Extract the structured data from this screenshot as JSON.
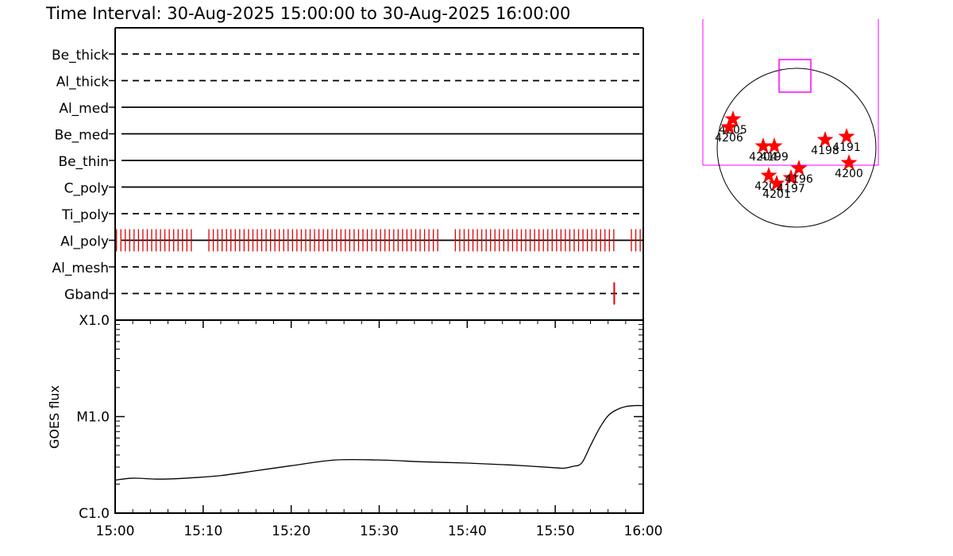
{
  "title": "Time Interval: 30-Aug-2025 15:00:00 to 30-Aug-2025 16:00:00",
  "colors": {
    "axes": "#000000",
    "events": "#e00000",
    "frame": "#ff00ff",
    "stars": "#ff0000"
  },
  "chart_data": [
    {
      "type": "timeline",
      "x_range": [
        "15:00",
        "16:00"
      ],
      "rows": [
        {
          "label": "Be_thick",
          "style": "dashed",
          "events": []
        },
        {
          "label": "Al_thick",
          "style": "dashed",
          "events": []
        },
        {
          "label": "Al_med",
          "style": "solid",
          "events": []
        },
        {
          "label": "Be_med",
          "style": "solid",
          "events": []
        },
        {
          "label": "Be_thin",
          "style": "solid",
          "events": []
        },
        {
          "label": "C_poly",
          "style": "solid",
          "events": []
        },
        {
          "label": "Ti_poly",
          "style": "dashed",
          "events": []
        },
        {
          "label": "Al_poly",
          "style": "solid",
          "events": "every ~30 s, with gaps near 15:09-15:10, 15:37-15:38, 15:57-15:58"
        },
        {
          "label": "Al_mesh",
          "style": "dashed",
          "events": []
        },
        {
          "label": "Gband",
          "style": "dashed",
          "events": [
            "15:56.7"
          ]
        }
      ]
    },
    {
      "type": "line",
      "ylabel": "GOES flux",
      "y_scale": "log",
      "y_ticks": [
        "C1.0",
        "M1.0",
        "X1.0"
      ],
      "ylim": [
        1e-06,
        0.0001
      ],
      "x_ticks": [
        "15:00",
        "15:10",
        "15:20",
        "15:30",
        "15:40",
        "15:50",
        "16:00"
      ],
      "series": [
        {
          "x": [
            "15:00",
            "15:02",
            "15:05",
            "15:08",
            "15:12",
            "15:16",
            "15:20",
            "15:25",
            "15:30",
            "15:35",
            "15:40",
            "15:45",
            "15:50",
            "15:51",
            "15:52",
            "15:53",
            "15:54",
            "15:55",
            "15:56",
            "15:57",
            "15:58",
            "15:59",
            "16:00"
          ],
          "y": [
            2.2e-06,
            2.3e-06,
            2.25e-06,
            2.3e-06,
            2.45e-06,
            2.75e-06,
            3.1e-06,
            3.55e-06,
            3.55e-06,
            3.4e-06,
            3.3e-06,
            3.15e-06,
            2.95e-06,
            2.92e-06,
            3.05e-06,
            3.3e-06,
            5e-06,
            7.5e-06,
            1.02e-05,
            1.18e-05,
            1.27e-05,
            1.3e-05,
            1.3e-05
          ]
        }
      ]
    },
    {
      "type": "scatter",
      "subtype": "solar-disk-active-regions",
      "points": [
        {
          "label": "4205",
          "x": -0.8,
          "y": 0.36
        },
        {
          "label": "4206",
          "x": -0.85,
          "y": 0.26
        },
        {
          "label": "4204",
          "x": -0.42,
          "y": 0.02
        },
        {
          "label": "4199",
          "x": -0.28,
          "y": 0.02
        },
        {
          "label": "4202",
          "x": -0.35,
          "y": -0.35
        },
        {
          "label": "4201",
          "x": -0.25,
          "y": -0.45
        },
        {
          "label": "4197",
          "x": -0.07,
          "y": -0.38
        },
        {
          "label": "4196",
          "x": 0.03,
          "y": -0.26
        },
        {
          "label": "4198",
          "x": 0.36,
          "y": 0.1
        },
        {
          "label": "4191",
          "x": 0.63,
          "y": 0.14
        },
        {
          "label": "4200",
          "x": 0.66,
          "y": -0.19
        }
      ],
      "field_of_view": {
        "x": [
          -0.22,
          0.18
        ],
        "y": [
          0.7,
          1.11
        ]
      }
    }
  ]
}
